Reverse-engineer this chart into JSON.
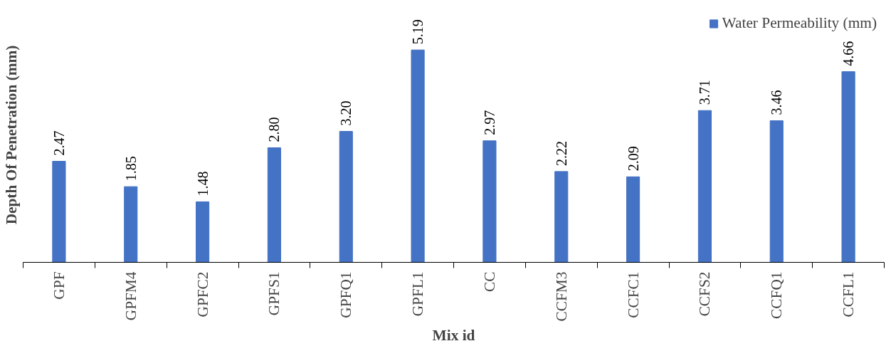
{
  "chart_data": {
    "type": "bar",
    "xlabel": "Mix id",
    "ylabel": "Depth Of Penetration (mm)",
    "categories": [
      "GPF",
      "GPFM4",
      "GPFC2",
      "GPFS1",
      "GPFQ1",
      "GPFL1",
      "CC",
      "CCFM3",
      "CCFC1",
      "CCFS2",
      "CCFQ1",
      "CCFL1"
    ],
    "series": [
      {
        "name": "Water Permeability (mm)",
        "color": "#4472c4",
        "values": [
          2.47,
          1.85,
          1.48,
          2.8,
          3.2,
          5.19,
          2.97,
          2.22,
          2.09,
          3.71,
          3.46,
          4.66
        ],
        "value_labels": [
          "2.47",
          "1.85",
          "1.48",
          "2.80",
          "3.20",
          "5.19",
          "2.97",
          "2.22",
          "2.09",
          "3.71",
          "3.46",
          "4.66"
        ]
      }
    ],
    "grid": false,
    "legend": "top right"
  }
}
